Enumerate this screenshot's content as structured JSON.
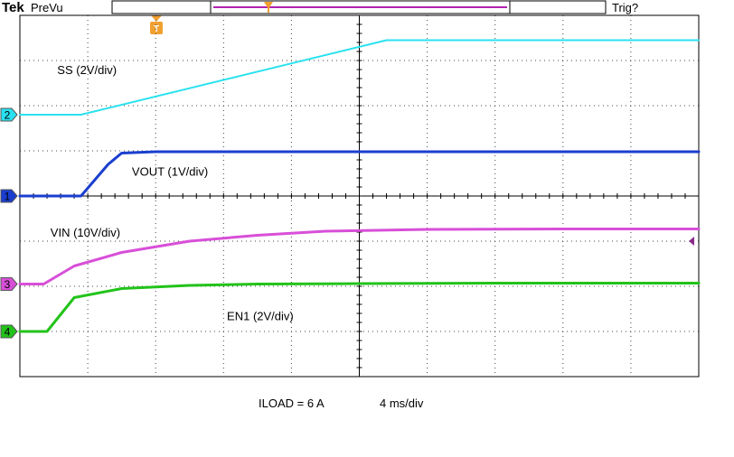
{
  "header": {
    "brand": "Tek",
    "mode": "PreVu",
    "trigger_status": "Trig?",
    "trigger_marker": "T"
  },
  "chart_data": {
    "type": "line",
    "title": "",
    "xlabel": "",
    "ylabel": "",
    "x_unit": "div",
    "y_unit": "div",
    "xlim": [
      0,
      10
    ],
    "ylim": [
      -4,
      4
    ],
    "grid": true,
    "time_scale": "4 ms/div",
    "load": "ILOAD = 6 A",
    "channels": [
      {
        "id": "2",
        "color": "#29e1f0"
      },
      {
        "id": "1",
        "color": "#1a3ecf"
      },
      {
        "id": "3",
        "color": "#d84fd8"
      },
      {
        "id": "4",
        "color": "#22c31a"
      }
    ],
    "series": [
      {
        "name": "SS (2V/div)",
        "channel": "2",
        "color": "#29e1f0",
        "x": [
          0,
          0.9,
          5.4,
          10
        ],
        "y": [
          1.8,
          1.8,
          3.45,
          3.45
        ]
      },
      {
        "name": "VOUT (1V/div)",
        "channel": "1",
        "color": "#1a3ecf",
        "x": [
          0,
          0.9,
          1.3,
          1.5,
          2.0,
          5.0,
          10
        ],
        "y": [
          0.0,
          0.0,
          0.7,
          0.95,
          0.98,
          0.98,
          0.98
        ]
      },
      {
        "name": "VIN (10V/div)",
        "channel": "3",
        "color": "#d84fd8",
        "x": [
          0,
          0.35,
          0.8,
          1.5,
          2.5,
          3.5,
          4.5,
          6,
          8,
          10
        ],
        "y": [
          -1.95,
          -1.95,
          -1.55,
          -1.25,
          -1.0,
          -0.87,
          -0.78,
          -0.74,
          -0.73,
          -0.73
        ]
      },
      {
        "name": "EN1  (2V/div)",
        "channel": "4",
        "color": "#22c31a",
        "x": [
          0,
          0.4,
          0.8,
          1.5,
          2.5,
          3.5,
          5,
          7,
          10
        ],
        "y": [
          -3.0,
          -3.0,
          -2.25,
          -2.05,
          -1.98,
          -1.95,
          -1.94,
          -1.93,
          -1.93
        ]
      }
    ],
    "annotations": [
      {
        "text": "SS (2V/div)",
        "x": 0.55,
        "y": 2.7
      },
      {
        "text": "VOUT (1V/div)",
        "x": 1.65,
        "y": 0.45
      },
      {
        "text": "VIN (10V/div)",
        "x": 0.45,
        "y": -0.9
      },
      {
        "text": "EN1  (2V/div)",
        "x": 3.05,
        "y": -2.75
      }
    ]
  }
}
